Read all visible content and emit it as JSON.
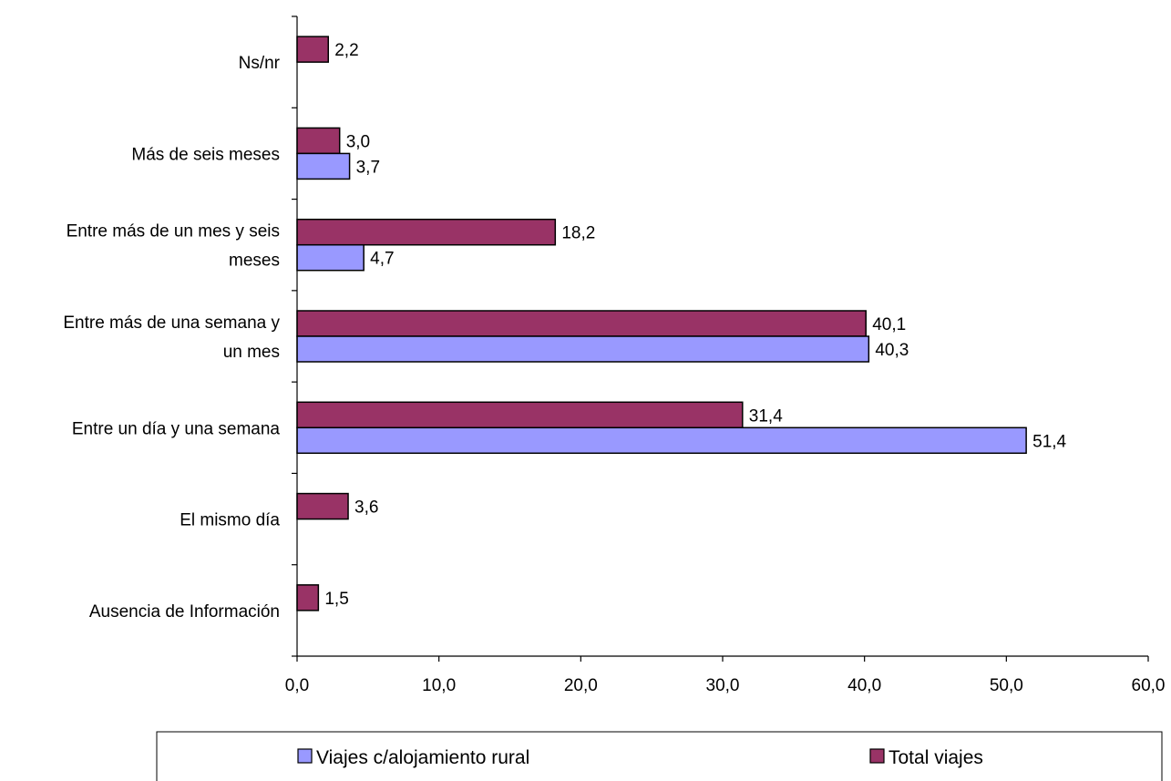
{
  "chart_data": {
    "type": "bar",
    "orientation": "horizontal",
    "categories": [
      [
        "Ns/nr"
      ],
      [
        "Más de seis meses"
      ],
      [
        "Entre más de un mes y seis",
        "meses"
      ],
      [
        "Entre más de una semana y",
        "un mes"
      ],
      [
        "Entre un día y una semana"
      ],
      [
        "El mismo día"
      ],
      [
        "Ausencia de Información"
      ]
    ],
    "series": [
      {
        "name": "Total viajes",
        "color": "#993366",
        "values": [
          2.2,
          3.0,
          18.2,
          40.1,
          31.4,
          3.6,
          1.5
        ],
        "labels": [
          "2,2",
          "3,0",
          "18,2",
          "40,1",
          "31,4",
          "3,6",
          "1,5"
        ]
      },
      {
        "name": "Viajes c/alojamiento rural",
        "color": "#9999FF",
        "values": [
          null,
          3.7,
          4.7,
          40.3,
          51.4,
          null,
          null
        ],
        "labels": [
          "",
          "3,7",
          "4,7",
          "40,3",
          "51,4",
          "",
          ""
        ]
      }
    ],
    "xlim": [
      0,
      60
    ],
    "xticks": [
      0,
      10,
      20,
      30,
      40,
      50,
      60
    ],
    "xtick_labels": [
      "0,0",
      "10,0",
      "20,0",
      "30,0",
      "40,0",
      "50,0",
      "60,0"
    ],
    "grid": false,
    "legend": {
      "position": "bottom",
      "entries": [
        "Viajes c/alojamiento rural",
        "Total viajes"
      ]
    }
  }
}
